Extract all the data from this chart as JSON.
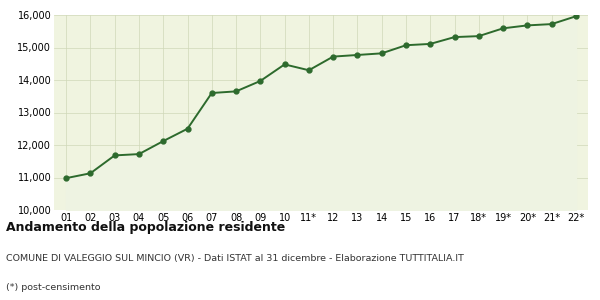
{
  "x_labels": [
    "01",
    "02",
    "03",
    "04",
    "05",
    "06",
    "07",
    "08",
    "09",
    "10",
    "11*",
    "12",
    "13",
    "14",
    "15",
    "16",
    "17",
    "18*",
    "19*",
    "20*",
    "21*",
    "22*"
  ],
  "values": [
    10980,
    11130,
    11680,
    11720,
    12120,
    12500,
    13600,
    13650,
    13970,
    14480,
    14300,
    14720,
    14770,
    14820,
    15070,
    15110,
    15320,
    15350,
    15590,
    15680,
    15720,
    15960
  ],
  "line_color": "#2d6a2d",
  "fill_color": "#eef3e2",
  "background_color": "#f0f4e0",
  "grid_color": "#d0d8b8",
  "ylim": [
    10000,
    16000
  ],
  "yticks": [
    10000,
    11000,
    12000,
    13000,
    14000,
    15000,
    16000
  ],
  "title": "Andamento della popolazione residente",
  "subtitle": "COMUNE DI VALEGGIO SUL MINCIO (VR) - Dati ISTAT al 31 dicembre - Elaborazione TUTTITALIA.IT",
  "footnote": "(*) post-censimento",
  "title_fontsize": 9,
  "subtitle_fontsize": 6.8,
  "footnote_fontsize": 6.8,
  "tick_fontsize": 7,
  "marker_size": 3.5,
  "line_width": 1.4
}
